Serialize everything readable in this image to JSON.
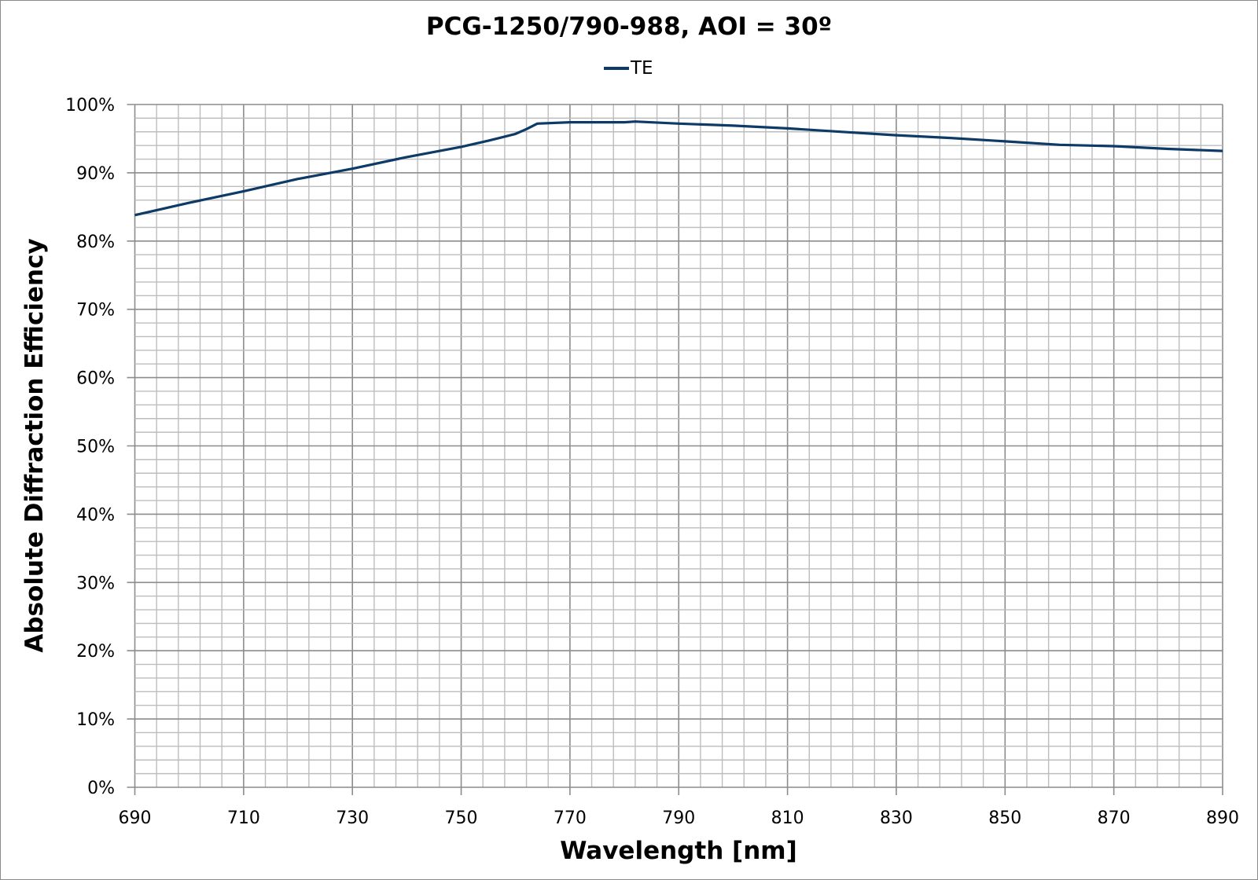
{
  "chart_data": {
    "type": "line",
    "title": "PCG-1250/790-988, AOI = 30º",
    "xlabel": "Wavelength [nm]",
    "ylabel": "Absolute Diffraction Efficiency",
    "xlim": [
      690,
      890
    ],
    "ylim": [
      0,
      100
    ],
    "x_ticks": [
      "690",
      "710",
      "730",
      "750",
      "770",
      "790",
      "810",
      "830",
      "850",
      "870",
      "890"
    ],
    "y_ticks": [
      "0%",
      "10%",
      "20%",
      "30%",
      "40%",
      "50%",
      "60%",
      "70%",
      "80%",
      "90%",
      "100%"
    ],
    "x_minor_step": 4,
    "y_minor_step": 2,
    "grid": true,
    "legend": "top-center",
    "series": [
      {
        "name": "TE",
        "color": "#0d3a66",
        "x": [
          690,
          700,
          710,
          720,
          730,
          740,
          750,
          755,
          760,
          762,
          764,
          770,
          775,
          780,
          782,
          790,
          800,
          810,
          820,
          830,
          840,
          850,
          860,
          870,
          880,
          890
        ],
        "y": [
          83.8,
          85.6,
          87.3,
          89.1,
          90.6,
          92.3,
          93.8,
          94.7,
          95.7,
          96.4,
          97.2,
          97.4,
          97.4,
          97.4,
          97.5,
          97.2,
          96.9,
          96.5,
          96.0,
          95.5,
          95.1,
          94.6,
          94.1,
          93.9,
          93.5,
          93.2
        ]
      }
    ]
  }
}
